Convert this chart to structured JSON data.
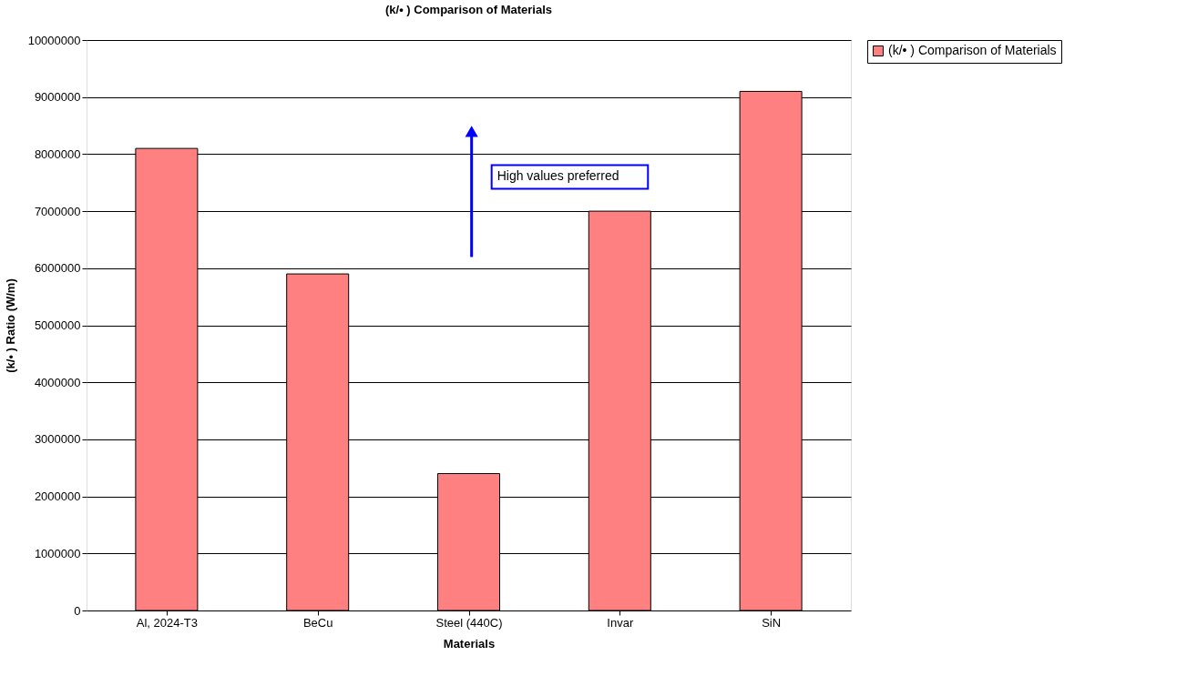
{
  "chart_data": {
    "type": "bar",
    "title": "(k/• ) Comparison of Materials",
    "xlabel": "Materials",
    "ylabel": "(k/• ) Ratio  (W/m)",
    "categories": [
      "Al, 2024-T3",
      "BeCu",
      "Steel (440C)",
      "Invar",
      "SiN"
    ],
    "series": [
      {
        "name": "(k/• ) Comparison of Materials",
        "color": "#ff8080",
        "values": [
          8100000,
          5900000,
          2400000,
          7000000,
          9100000
        ]
      }
    ],
    "ylim": [
      0,
      10000000
    ],
    "yticks": [
      0,
      1000000,
      2000000,
      3000000,
      4000000,
      5000000,
      6000000,
      7000000,
      8000000,
      9000000,
      10000000
    ],
    "grid": "y",
    "legend": "right",
    "annotations": [
      "High values preferred"
    ]
  }
}
